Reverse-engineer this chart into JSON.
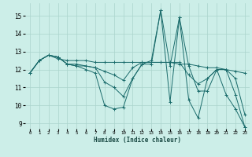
{
  "background_color": "#cceee8",
  "grid_color": "#aad4cc",
  "line_color": "#1a6b6b",
  "xlabel": "Humidex (Indice chaleur)",
  "xlim": [
    -0.5,
    23.5
  ],
  "ylim": [
    8.7,
    15.7
  ],
  "yticks": [
    9,
    10,
    11,
    12,
    13,
    14,
    15
  ],
  "xticks": [
    0,
    1,
    2,
    3,
    4,
    5,
    6,
    7,
    8,
    9,
    10,
    11,
    12,
    13,
    14,
    15,
    16,
    17,
    18,
    19,
    20,
    21,
    22,
    23
  ],
  "lines": [
    {
      "x": [
        0,
        1,
        2,
        3,
        4,
        5,
        6,
        7,
        8,
        9,
        10,
        11,
        12,
        13,
        14,
        15,
        16,
        17,
        18,
        19,
        20,
        21,
        22,
        23
      ],
      "y": [
        11.8,
        12.5,
        12.8,
        12.7,
        12.3,
        12.2,
        12.0,
        11.8,
        10.0,
        9.8,
        9.9,
        11.5,
        12.3,
        12.3,
        15.3,
        12.2,
        14.9,
        12.2,
        10.8,
        10.8,
        12.0,
        10.6,
        9.8,
        8.8
      ]
    },
    {
      "x": [
        0,
        1,
        2,
        3,
        4,
        5,
        6,
        7,
        8,
        9,
        10,
        11,
        12,
        13,
        14,
        15,
        16,
        17,
        18,
        19,
        20,
        21,
        22,
        23
      ],
      "y": [
        11.8,
        12.5,
        12.8,
        12.7,
        12.3,
        12.2,
        12.2,
        12.1,
        11.3,
        11.0,
        10.5,
        11.5,
        12.3,
        12.5,
        15.3,
        10.2,
        14.9,
        10.3,
        9.3,
        11.5,
        12.0,
        12.0,
        10.6,
        8.8
      ]
    },
    {
      "x": [
        0,
        1,
        2,
        3,
        4,
        5,
        6,
        7,
        8,
        9,
        10,
        11,
        12,
        13,
        14,
        15,
        16,
        17,
        18,
        19,
        20,
        21,
        22,
        23
      ],
      "y": [
        11.8,
        12.5,
        12.8,
        12.6,
        12.5,
        12.5,
        12.5,
        12.4,
        12.4,
        12.4,
        12.4,
        12.4,
        12.4,
        12.4,
        12.4,
        12.4,
        12.3,
        12.3,
        12.2,
        12.1,
        12.1,
        12.0,
        11.9,
        11.8
      ]
    },
    {
      "x": [
        0,
        1,
        2,
        3,
        4,
        5,
        6,
        7,
        8,
        9,
        10,
        11,
        12,
        13,
        14,
        15,
        16,
        17,
        18,
        19,
        20,
        21,
        22,
        23
      ],
      "y": [
        11.8,
        12.5,
        12.8,
        12.7,
        12.3,
        12.3,
        12.2,
        12.1,
        11.9,
        11.7,
        11.4,
        12.1,
        12.4,
        12.4,
        12.4,
        12.4,
        12.4,
        11.7,
        11.2,
        11.5,
        12.0,
        12.0,
        11.5,
        9.5
      ]
    }
  ]
}
